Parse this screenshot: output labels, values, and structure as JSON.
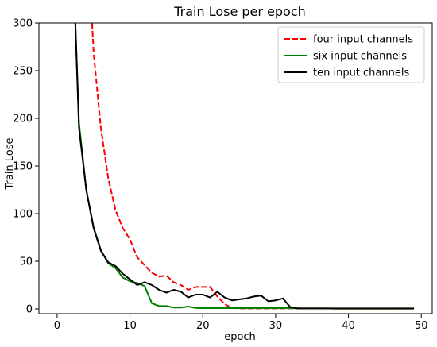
{
  "chart_data": {
    "type": "line",
    "title": "Train Lose per epoch",
    "xlabel": "epoch",
    "ylabel": "Train Lose",
    "xlim": [
      -2.5,
      51.5
    ],
    "ylim": [
      -5,
      300
    ],
    "xticks": [
      0,
      10,
      20,
      30,
      40,
      50
    ],
    "yticks": [
      0,
      50,
      100,
      150,
      200,
      250,
      300
    ],
    "legend_position": "top-right",
    "grid": false,
    "series": [
      {
        "name": "four input channels",
        "color": "#ff0000",
        "dash": "dashed",
        "x": [
          4.8,
          5,
          6,
          7,
          8,
          9,
          10,
          11,
          12,
          13,
          14,
          15,
          16,
          17,
          18,
          19,
          20,
          21,
          22,
          23,
          24,
          25,
          26,
          27,
          28,
          29,
          30,
          31,
          32,
          33,
          34,
          35,
          36,
          37,
          38,
          39,
          40,
          41,
          42,
          43,
          44,
          45,
          46,
          47,
          48,
          49
        ],
        "y": [
          300,
          270,
          190,
          138,
          104,
          85,
          73,
          54,
          46,
          38,
          34,
          35,
          28,
          25,
          20,
          23,
          23,
          23,
          13,
          5,
          1,
          0.5,
          0.5,
          0.5,
          0.5,
          0.5,
          0.5,
          0.5,
          0.5,
          0.5,
          0.5,
          0.5,
          0.5,
          0.5,
          0.3,
          0.3,
          0.3,
          0.3,
          0.3,
          0.3,
          0.3,
          0.3,
          0.3,
          0.3,
          0.3,
          0.3
        ]
      },
      {
        "name": "six input channels",
        "color": "#008000",
        "dash": "solid",
        "x": [
          2.5,
          3,
          4,
          5,
          6,
          7,
          8,
          9,
          10,
          11,
          12,
          13,
          14,
          15,
          16,
          17,
          18,
          19,
          20,
          21,
          22,
          23,
          24,
          25,
          26,
          27,
          28,
          29,
          30,
          31,
          32,
          33,
          34,
          35,
          36,
          37,
          38,
          39,
          40,
          41,
          42,
          43,
          44,
          45,
          46,
          47,
          48,
          49
        ],
        "y": [
          300,
          195,
          125,
          86,
          62,
          48,
          43,
          33,
          29,
          27,
          24,
          6,
          3,
          3,
          1.5,
          1.5,
          2.5,
          1,
          0.8,
          0.8,
          0.8,
          0.8,
          0.8,
          0.8,
          0.8,
          0.8,
          0.8,
          0.8,
          0.8,
          0.8,
          0.8,
          0.5,
          0.5,
          0.5,
          0.5,
          0.5,
          0.3,
          0.3,
          0.3,
          0.3,
          0.3,
          0.3,
          0.3,
          0.3,
          0.3,
          0.3,
          0.3,
          0.3
        ]
      },
      {
        "name": "ten input channels",
        "color": "#000000",
        "dash": "solid",
        "x": [
          2.5,
          3,
          4,
          5,
          6,
          7,
          8,
          9,
          10,
          11,
          12,
          13,
          14,
          15,
          16,
          17,
          18,
          19,
          20,
          21,
          22,
          23,
          24,
          25,
          26,
          27,
          28,
          29,
          30,
          31,
          32,
          33,
          34,
          35,
          36,
          37,
          38,
          39,
          40,
          41,
          42,
          43,
          44,
          45,
          46,
          47,
          48,
          49
        ],
        "y": [
          300,
          190,
          125,
          85,
          61,
          49,
          45,
          37,
          31,
          25,
          28,
          25,
          20,
          17,
          20,
          18,
          12,
          15,
          15,
          12,
          18,
          12,
          9,
          10,
          11,
          13,
          14,
          8,
          9,
          11,
          2,
          0.5,
          0.5,
          0.5,
          0.5,
          0.5,
          0.5,
          0.5,
          0.5,
          0.5,
          0.5,
          0.5,
          0.5,
          0.5,
          0.5,
          0.5,
          0.5,
          0.5
        ]
      }
    ]
  }
}
